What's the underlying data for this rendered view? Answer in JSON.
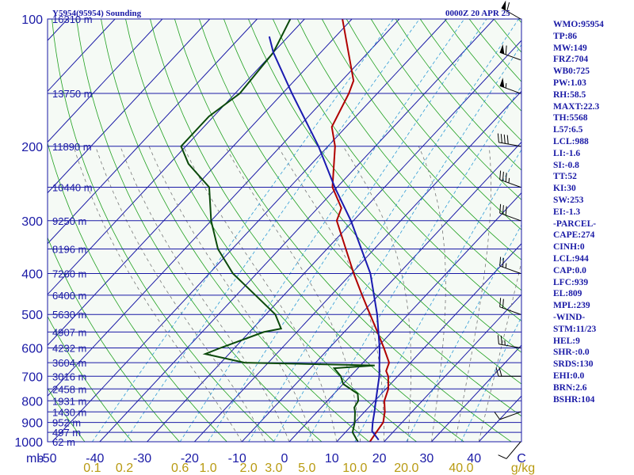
{
  "header": {
    "station": "Y5954(95954) Sounding",
    "time": "0000Z 20 APR 25"
  },
  "chart_data": {
    "type": "skew-t",
    "x_axis": {
      "tick_labels": [
        "-50",
        "-40",
        "-30",
        "-20",
        "-10",
        "0",
        "10",
        "20",
        "30",
        "40",
        "C"
      ],
      "unit_prefix": "mb",
      "xlim_celsius_at_1000mb": [
        -50,
        50
      ]
    },
    "y_axis": {
      "pressure_labels": [
        "100",
        "200",
        "300",
        "400",
        "500",
        "600",
        "700",
        "800",
        "900",
        "1000"
      ],
      "scale": "log-pressure",
      "ylim_mb": [
        100,
        1000
      ]
    },
    "mixing_ratio_labels": [
      "0.1",
      "0.2",
      "0.6",
      "1.0",
      "2.0",
      "3.0",
      "5.0",
      "10.0",
      "20.0",
      "40.0",
      "g/kg"
    ],
    "heights": [
      {
        "p": 100,
        "label": "16310 m"
      },
      {
        "p": 150,
        "label": "13750 m"
      },
      {
        "p": 200,
        "label": "11890 m"
      },
      {
        "p": 250,
        "label": "10440 m"
      },
      {
        "p": 300,
        "label": "9250 m"
      },
      {
        "p": 350,
        "label": "8196 m"
      },
      {
        "p": 400,
        "label": "7260 m"
      },
      {
        "p": 450,
        "label": "6400 m"
      },
      {
        "p": 500,
        "label": "5630 m"
      },
      {
        "p": 550,
        "label": "4907 m"
      },
      {
        "p": 600,
        "label": "4232 m"
      },
      {
        "p": 650,
        "label": "3604 m"
      },
      {
        "p": 700,
        "label": "3016 m"
      },
      {
        "p": 750,
        "label": "2458 m"
      },
      {
        "p": 800,
        "label": "1931 m"
      },
      {
        "p": 850,
        "label": "1430 m"
      },
      {
        "p": 900,
        "label": "952 m"
      },
      {
        "p": 950,
        "label": "497 m"
      },
      {
        "p": 1000,
        "label": "62 m"
      }
    ],
    "series": [
      {
        "key": "temperature",
        "color": "#b00000",
        "points": [
          [
            1000,
            17
          ],
          [
            950,
            16.5
          ],
          [
            900,
            16
          ],
          [
            850,
            14.3
          ],
          [
            800,
            12
          ],
          [
            750,
            10.5
          ],
          [
            700,
            8
          ],
          [
            680,
            6.5
          ],
          [
            650,
            5.5
          ],
          [
            600,
            1.5
          ],
          [
            550,
            -3
          ],
          [
            500,
            -8
          ],
          [
            450,
            -13.5
          ],
          [
            400,
            -19.5
          ],
          [
            350,
            -26
          ],
          [
            300,
            -33.5
          ],
          [
            280,
            -35
          ],
          [
            250,
            -41
          ],
          [
            200,
            -48.5
          ],
          [
            180,
            -53
          ],
          [
            150,
            -56
          ],
          [
            140,
            -57.5
          ],
          [
            100,
            -72
          ]
        ]
      },
      {
        "key": "dewpoint",
        "color": "#0b4a0b",
        "points": [
          [
            1000,
            14.5
          ],
          [
            950,
            11.5
          ],
          [
            900,
            10
          ],
          [
            850,
            8
          ],
          [
            830,
            7
          ],
          [
            800,
            6.5
          ],
          [
            770,
            5
          ],
          [
            730,
            0
          ],
          [
            700,
            -2
          ],
          [
            670,
            -5
          ],
          [
            660,
            3
          ],
          [
            650,
            -25
          ],
          [
            620,
            -35
          ],
          [
            600,
            -33
          ],
          [
            550,
            -27
          ],
          [
            540,
            -24
          ],
          [
            500,
            -28
          ],
          [
            450,
            -36
          ],
          [
            400,
            -45
          ],
          [
            350,
            -53
          ],
          [
            300,
            -60
          ],
          [
            250,
            -67
          ],
          [
            220,
            -76
          ],
          [
            200,
            -81
          ],
          [
            170,
            -81
          ],
          [
            150,
            -79
          ],
          [
            120,
            -80
          ],
          [
            100,
            -83
          ]
        ]
      },
      {
        "key": "parcel",
        "color": "#1a1ab0",
        "points": [
          [
            990,
            18.5
          ],
          [
            944,
            15.4
          ],
          [
            900,
            13.8
          ],
          [
            850,
            12.1
          ],
          [
            800,
            10.2
          ],
          [
            700,
            6.1
          ],
          [
            600,
            0.6
          ],
          [
            500,
            -6.5
          ],
          [
            400,
            -16
          ],
          [
            300,
            -30.5
          ],
          [
            250,
            -40.5
          ],
          [
            200,
            -52
          ],
          [
            150,
            -68
          ],
          [
            120,
            -80
          ],
          [
            110,
            -84
          ]
        ]
      }
    ],
    "wind_barbs": [
      {
        "p": 1000,
        "dir": 220,
        "spd": 10
      },
      {
        "p": 850,
        "dir": 250,
        "spd": 10
      },
      {
        "p": 700,
        "dir": 270,
        "spd": 20
      },
      {
        "p": 600,
        "dir": 280,
        "spd": 25
      },
      {
        "p": 500,
        "dir": 290,
        "spd": 20
      },
      {
        "p": 400,
        "dir": 290,
        "spd": 25
      },
      {
        "p": 300,
        "dir": 290,
        "spd": 30
      },
      {
        "p": 250,
        "dir": 290,
        "spd": 35
      },
      {
        "p": 200,
        "dir": 280,
        "spd": 40
      },
      {
        "p": 150,
        "dir": 290,
        "spd": 55
      },
      {
        "p": 125,
        "dir": 290,
        "spd": 60
      },
      {
        "p": 100,
        "dir": 300,
        "spd": 60
      }
    ]
  },
  "stats": [
    "WMO:95954",
    "TP:86",
    "MW:149",
    "FRZ:704",
    "WB0:725",
    "PW:1.03",
    "RH:58.5",
    "MAXT:22.3",
    "TH:5568",
    "L57:6.5",
    "LCL:988",
    "LI:-1.6",
    "SI:-0.8",
    "TT:52",
    "KI:30",
    "SW:253",
    "EI:-1.3",
    "-PARCEL-",
    "CAPE:274",
    "CINH:0",
    "LCL:944",
    "CAP:0.0",
    "LFC:939",
    "EL:809",
    "MPL:239",
    "-WIND-",
    "STM:11/23",
    "HEL:9",
    "SHR-:0.0",
    "SRDS:130",
    "EHI:0.0",
    "BRN:2.6",
    "BSHR:104"
  ]
}
